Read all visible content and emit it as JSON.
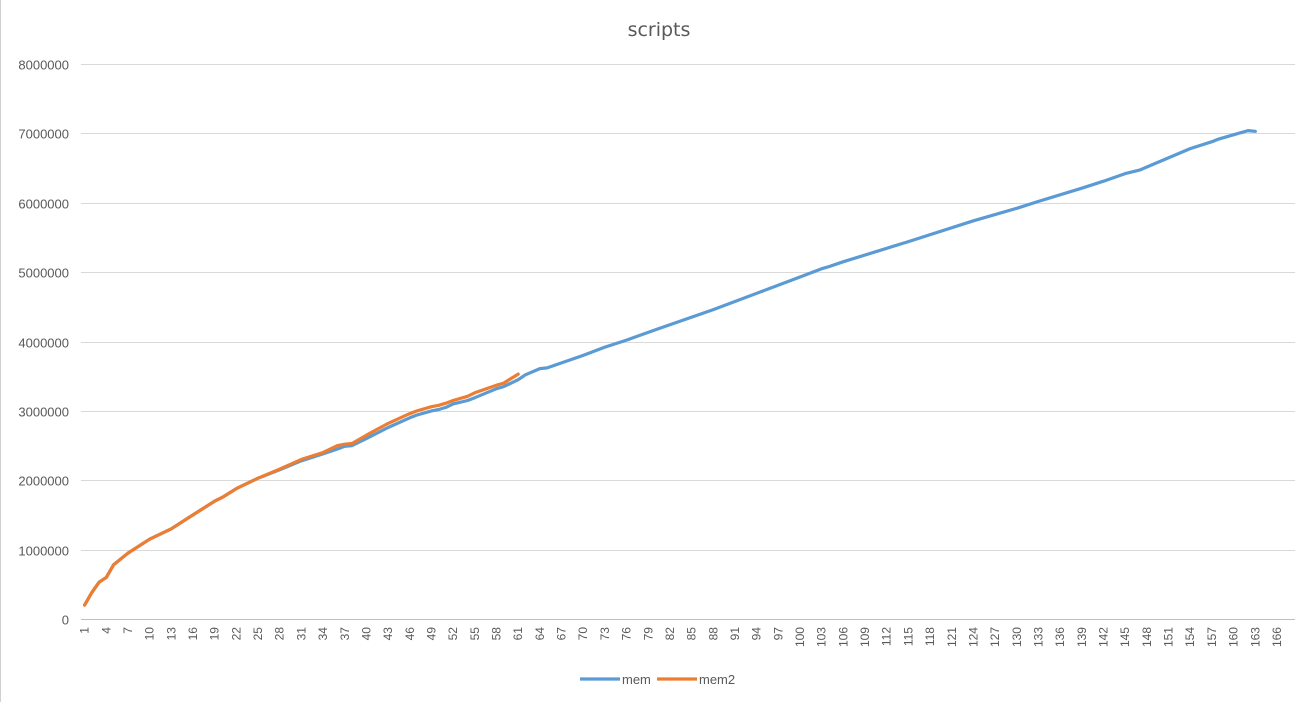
{
  "chart_data": {
    "type": "line",
    "title": "scripts",
    "xlabel": "",
    "ylabel": "",
    "x_start": 1,
    "x_end": 168,
    "x_tick_step": 3,
    "x_tick_labels": [
      "1",
      "4",
      "7",
      "10",
      "13",
      "16",
      "19",
      "22",
      "25",
      "28",
      "31",
      "34",
      "37",
      "40",
      "43",
      "46",
      "49",
      "52",
      "55",
      "58",
      "61",
      "64",
      "67",
      "70",
      "73",
      "76",
      "79",
      "82",
      "85",
      "88",
      "91",
      "94",
      "97",
      "100",
      "103",
      "106",
      "109",
      "112",
      "115",
      "118",
      "121",
      "124",
      "127",
      "130",
      "133",
      "136",
      "139",
      "142",
      "145",
      "148",
      "151",
      "154",
      "157",
      "160",
      "163",
      "166"
    ],
    "y_tick_labels": [
      "0",
      "1000000",
      "2000000",
      "3000000",
      "4000000",
      "5000000",
      "6000000",
      "7000000",
      "8000000"
    ],
    "ylim": [
      0,
      8000000
    ],
    "grid": true,
    "legend_position": "bottom",
    "series": [
      {
        "name": "mem",
        "color": "#5b9bd5",
        "x": [
          1,
          2,
          3,
          4,
          5,
          7,
          10,
          13,
          16,
          19,
          20,
          22,
          25,
          28,
          31,
          34,
          36,
          37,
          38,
          40,
          43,
          46,
          47,
          49,
          50,
          51,
          52,
          54,
          55,
          58,
          59,
          61,
          62,
          64,
          65,
          70,
          73,
          76,
          80,
          88,
          100,
          103,
          104,
          106,
          115,
          124,
          130,
          133,
          139,
          142,
          145,
          147,
          154,
          157,
          158,
          161,
          162,
          163
        ],
        "y": [
          200000,
          380000,
          530000,
          600000,
          780000,
          950000,
          1150000,
          1300000,
          1500000,
          1700000,
          1750000,
          1880000,
          2030000,
          2150000,
          2280000,
          2380000,
          2450000,
          2490000,
          2500000,
          2600000,
          2760000,
          2900000,
          2940000,
          3000000,
          3020000,
          3050000,
          3100000,
          3150000,
          3190000,
          3320000,
          3350000,
          3450000,
          3520000,
          3610000,
          3620000,
          3800000,
          3920000,
          4020000,
          4170000,
          4460000,
          4930000,
          5050000,
          5080000,
          5150000,
          5440000,
          5740000,
          5920000,
          6020000,
          6210000,
          6310000,
          6420000,
          6470000,
          6780000,
          6880000,
          6920000,
          7010000,
          7040000,
          7030000
        ]
      },
      {
        "name": "mem2",
        "color": "#ed7d31",
        "x": [
          1,
          2,
          3,
          4,
          5,
          7,
          10,
          13,
          16,
          19,
          20,
          22,
          25,
          28,
          31,
          34,
          36,
          37,
          38,
          40,
          43,
          46,
          47,
          49,
          50,
          51,
          52,
          54,
          55,
          58,
          59,
          61
        ],
        "y": [
          200000,
          380000,
          530000,
          600000,
          780000,
          950000,
          1150000,
          1300000,
          1500000,
          1700000,
          1750000,
          1880000,
          2030000,
          2160000,
          2300000,
          2400000,
          2500000,
          2520000,
          2530000,
          2650000,
          2820000,
          2960000,
          3000000,
          3060000,
          3080000,
          3110000,
          3150000,
          3210000,
          3260000,
          3370000,
          3400000,
          3530000
        ]
      }
    ]
  }
}
